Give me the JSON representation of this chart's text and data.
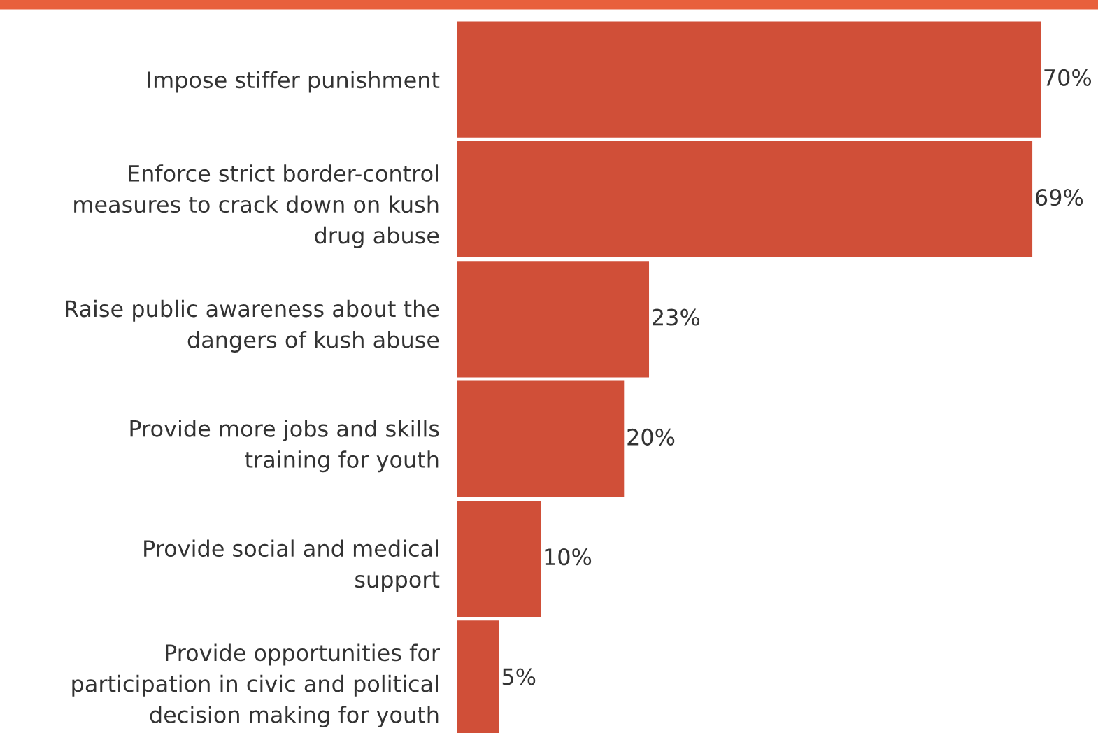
{
  "chart_data": {
    "type": "bar",
    "orientation": "horizontal",
    "value_labels": [
      "70%",
      "69%",
      "23%",
      "20%",
      "10%",
      "5%"
    ],
    "color": "#d04f38",
    "categories": [
      "Impose stiffer punishment",
      "Enforce strict border-control\nmeasures to crack down on kush\ndrug abuse",
      "Raise public awareness about the\ndangers of kush abuse",
      "Provide more jobs and skills\ntraining for youth",
      "Provide social and medical\nsupport",
      "Provide opportunities for\nparticipation in civic and political\ndecision making for youth"
    ],
    "values": [
      70,
      69,
      23,
      20,
      10,
      5
    ]
  }
}
